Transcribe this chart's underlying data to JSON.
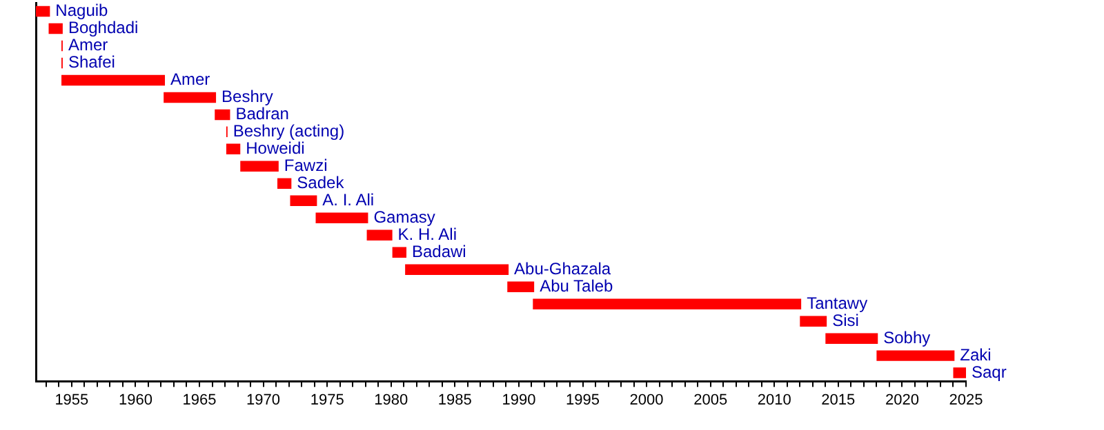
{
  "chart_data": {
    "type": "bar",
    "orientation": "horizontal",
    "tick_labels": "x",
    "grid": false,
    "legend": false,
    "categories": [
      "Naguib",
      "Boghdadi",
      "Amer",
      "Shafei",
      "Amer",
      "Beshry",
      "Badran",
      "Beshry (acting)",
      "Howeidi",
      "Fawzi",
      "Sadek",
      "A. I. Ali",
      "Gamasy",
      "K. H. Ali",
      "Badawi",
      "Abu-Ghazala",
      "Abu Taleb",
      "Tantawy",
      "Sisi",
      "Sobhy",
      "Zaki",
      "Saqr"
    ],
    "base": [
      1952.2,
      1953.2,
      1954.2,
      1954.2,
      1954.2,
      1962.2,
      1966.2,
      1967.1,
      1967.1,
      1968.2,
      1971.1,
      1972.1,
      1974.1,
      1978.1,
      1980.1,
      1981.1,
      1989.1,
      1991.1,
      2012.0,
      2014.0,
      2018.0,
      2024.0
    ],
    "values": [
      1.1,
      1.1,
      0.1,
      0.1,
      8.1,
      4.1,
      1.2,
      0.1,
      1.1,
      3.0,
      1.1,
      2.1,
      4.1,
      2.0,
      1.1,
      8.1,
      2.1,
      21.0,
      2.1,
      4.1,
      6.1,
      1.0
    ],
    "color": "#ff0000",
    "xlim": [
      1952.2,
      2025
    ],
    "xticks": [
      {
        "value": 1953,
        "label": null
      },
      {
        "value": 1954,
        "label": null
      },
      1955,
      {
        "value": 1956,
        "label": null
      },
      {
        "value": 1957,
        "label": null
      },
      {
        "value": 1958,
        "label": null
      },
      {
        "value": 1959,
        "label": null
      },
      1960,
      {
        "value": 1961,
        "label": null
      },
      {
        "value": 1962,
        "label": null
      },
      {
        "value": 1963,
        "label": null
      },
      {
        "value": 1964,
        "label": null
      },
      1965,
      {
        "value": 1966,
        "label": null
      },
      {
        "value": 1967,
        "label": null
      },
      {
        "value": 1968,
        "label": null
      },
      {
        "value": 1969,
        "label": null
      },
      1970,
      {
        "value": 1971,
        "label": null
      },
      {
        "value": 1972,
        "label": null
      },
      {
        "value": 1973,
        "label": null
      },
      {
        "value": 1974,
        "label": null
      },
      1975,
      {
        "value": 1976,
        "label": null
      },
      {
        "value": 1977,
        "label": null
      },
      {
        "value": 1978,
        "label": null
      },
      {
        "value": 1979,
        "label": null
      },
      1980,
      {
        "value": 1981,
        "label": null
      },
      {
        "value": 1982,
        "label": null
      },
      {
        "value": 1983,
        "label": null
      },
      {
        "value": 1984,
        "label": null
      },
      1985,
      {
        "value": 1986,
        "label": null
      },
      {
        "value": 1987,
        "label": null
      },
      {
        "value": 1988,
        "label": null
      },
      {
        "value": 1989,
        "label": null
      },
      1990,
      {
        "value": 1991,
        "label": null
      },
      {
        "value": 1992,
        "label": null
      },
      {
        "value": 1993,
        "label": null
      },
      {
        "value": 1994,
        "label": null
      },
      1995,
      {
        "value": 1996,
        "label": null
      },
      {
        "value": 1997,
        "label": null
      },
      {
        "value": 1998,
        "label": null
      },
      {
        "value": 1999,
        "label": null
      },
      2000,
      {
        "value": 2001,
        "label": null
      },
      {
        "value": 2002,
        "label": null
      },
      {
        "value": 2003,
        "label": null
      },
      {
        "value": 2004,
        "label": null
      },
      2005,
      {
        "value": 2006,
        "label": null
      },
      {
        "value": 2007,
        "label": null
      },
      {
        "value": 2008,
        "label": null
      },
      {
        "value": 2009,
        "label": null
      },
      2010,
      {
        "value": 2011,
        "label": null
      },
      {
        "value": 2012,
        "label": null
      },
      {
        "value": 2013,
        "label": null
      },
      {
        "value": 2014,
        "label": null
      },
      2015,
      {
        "value": 2016,
        "label": null
      },
      {
        "value": 2017,
        "label": null
      },
      {
        "value": 2018,
        "label": null
      },
      {
        "value": 2019,
        "label": null
      },
      2020,
      {
        "value": 2021,
        "label": null
      },
      {
        "value": 2022,
        "label": null
      },
      {
        "value": 2023,
        "label": null
      },
      {
        "value": 2024,
        "label": null
      },
      2025
    ]
  }
}
